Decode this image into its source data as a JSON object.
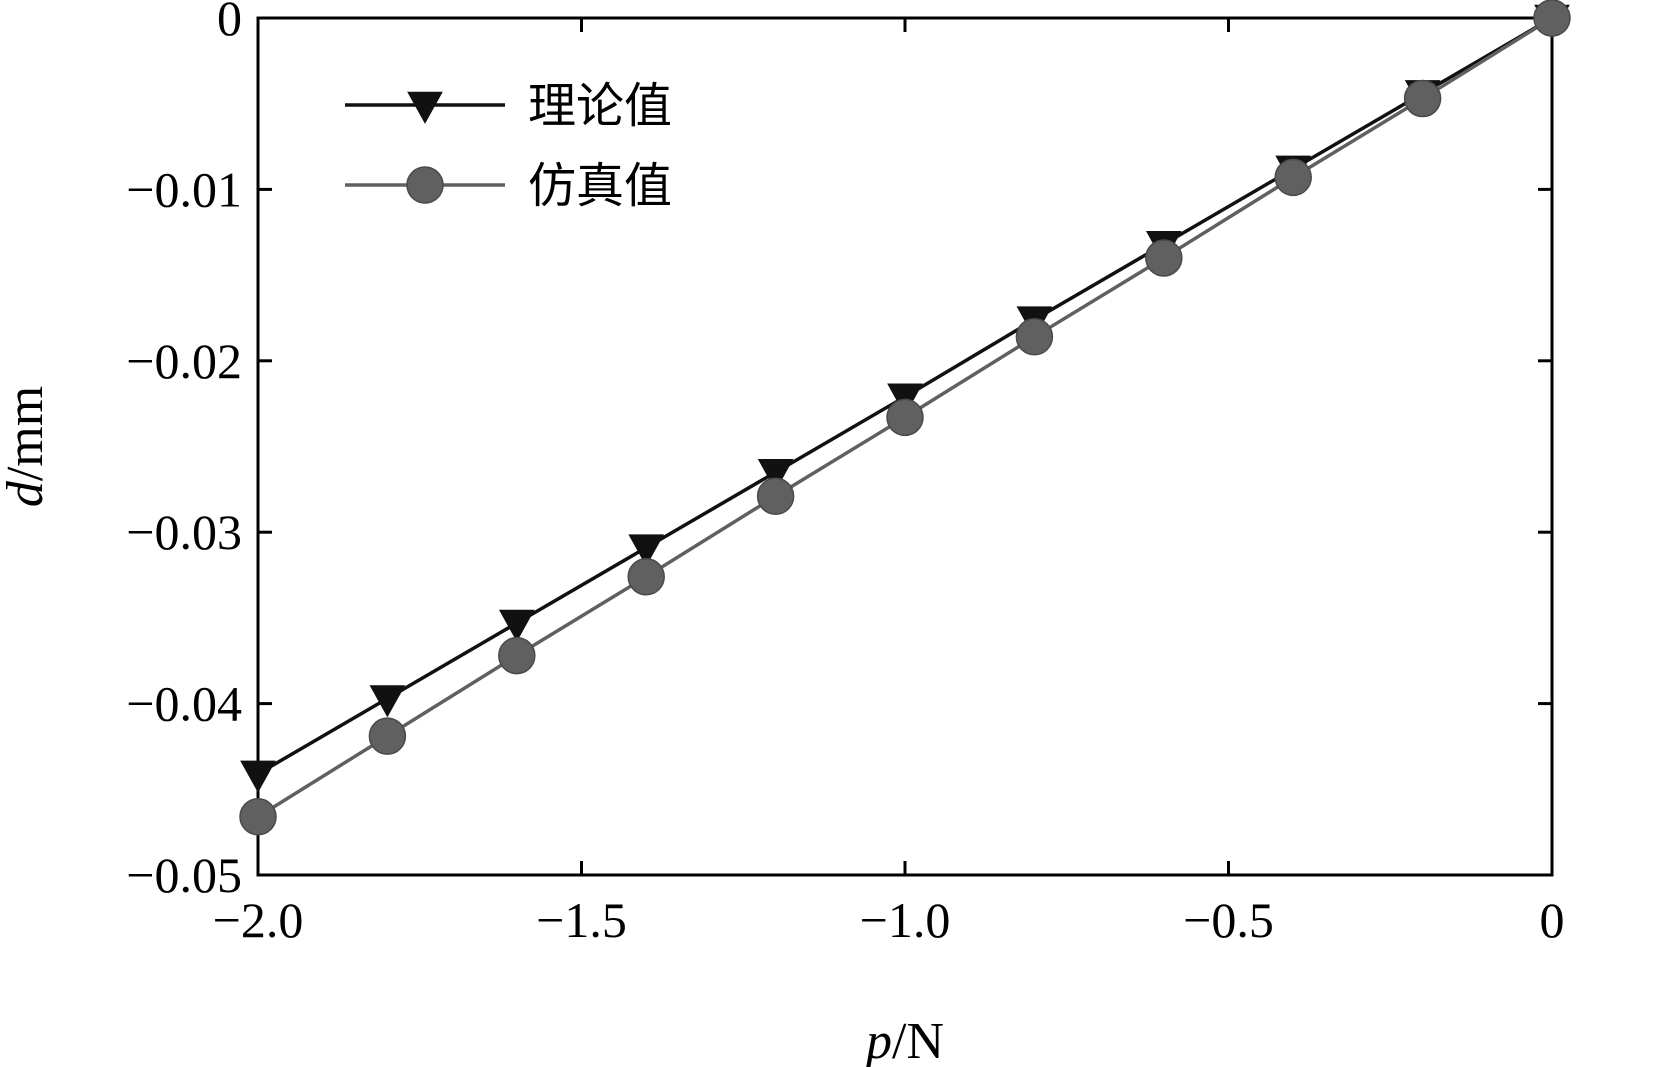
{
  "chart_data": {
    "type": "line",
    "title": "",
    "xlabel": {
      "var": "p",
      "unit": "/N"
    },
    "ylabel": {
      "var": "d",
      "unit": "/mm"
    },
    "xlim": [
      -2.0,
      0
    ],
    "ylim": [
      -0.05,
      0
    ],
    "x_ticks": [
      -2.0,
      -1.5,
      -1.0,
      -0.5,
      0
    ],
    "x_tick_labels": [
      "−2.0",
      "−1.5",
      "−1.0",
      "−0.5",
      "0"
    ],
    "y_ticks": [
      0,
      -0.01,
      -0.02,
      -0.03,
      -0.04,
      -0.05
    ],
    "y_tick_labels": [
      "0",
      "−0.01",
      "−0.02",
      "−0.03",
      "−0.04",
      "−0.05"
    ],
    "grid": false,
    "legend_position": "top-left",
    "x": [
      -2.0,
      -1.8,
      -1.6,
      -1.4,
      -1.2,
      -1.0,
      -0.8,
      -0.6,
      -0.4,
      -0.2,
      0
    ],
    "series": [
      {
        "name": "理论值",
        "marker": "triangle-down",
        "color": "#111111",
        "values": [
          -0.0441,
          -0.0397,
          -0.0353,
          -0.0309,
          -0.0265,
          -0.0221,
          -0.0176,
          -0.0132,
          -0.0088,
          -0.0044,
          0
        ]
      },
      {
        "name": "仿真值",
        "marker": "circle",
        "color": "#606060",
        "values": [
          -0.0466,
          -0.0419,
          -0.0372,
          -0.0326,
          -0.0279,
          -0.0233,
          -0.0186,
          -0.014,
          -0.0093,
          -0.0047,
          0
        ]
      }
    ]
  }
}
